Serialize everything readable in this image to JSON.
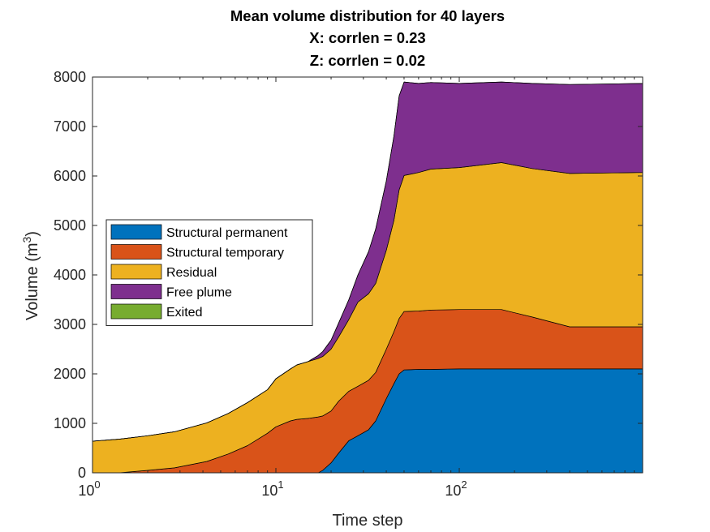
{
  "chart_data": {
    "type": "area",
    "title_lines": [
      "Mean volume distribution for 40 layers",
      "X: corrlen = 0.23",
      "Z: corrlen = 0.02"
    ],
    "xlabel": "Time step",
    "ylabel": "Volume (m",
    "ylabel_superscript": "3",
    "ylabel_close": ")",
    "x_scale": "log",
    "xlim": [
      1,
      1000
    ],
    "ylim": [
      0,
      8000
    ],
    "xticks": [
      {
        "base": "10",
        "exp": "0",
        "value": 1
      },
      {
        "base": "10",
        "exp": "1",
        "value": 10
      },
      {
        "base": "10",
        "exp": "2",
        "value": 100
      }
    ],
    "yticks": [
      "0",
      "1000",
      "2000",
      "3000",
      "4000",
      "5000",
      "6000",
      "7000",
      "8000"
    ],
    "stacked": true,
    "x": [
      1,
      1.4,
      2,
      2.8,
      4.2,
      5.5,
      7,
      9,
      10,
      12,
      13,
      15,
      17,
      18,
      20,
      22,
      25,
      28,
      32,
      35,
      40,
      44,
      47,
      50,
      60,
      70,
      100,
      170,
      250,
      400,
      1000
    ],
    "series": [
      {
        "name": "Structural permanent",
        "color": "#0072BD",
        "values": [
          0,
          0,
          0,
          0,
          0,
          0,
          0,
          0,
          0,
          0,
          0,
          0,
          0,
          50,
          200,
          400,
          650,
          750,
          870,
          1050,
          1500,
          1800,
          2000,
          2080,
          2090,
          2090,
          2100,
          2100,
          2100,
          2100,
          2100
        ]
      },
      {
        "name": "Structural temporary",
        "color": "#D95319",
        "values": [
          0,
          0,
          50,
          100,
          230,
          380,
          550,
          800,
          930,
          1050,
          1080,
          1100,
          1130,
          1100,
          1050,
          1050,
          1000,
          1000,
          1000,
          980,
          1000,
          1050,
          1120,
          1180,
          1180,
          1200,
          1200,
          1200,
          1050,
          850,
          850
        ]
      },
      {
        "name": "Residual",
        "color": "#EDB120",
        "values": [
          640,
          680,
          700,
          730,
          780,
          820,
          870,
          880,
          970,
          1050,
          1100,
          1150,
          1180,
          1200,
          1250,
          1300,
          1450,
          1700,
          1750,
          1800,
          2000,
          2250,
          2600,
          2750,
          2800,
          2850,
          2870,
          2970,
          3000,
          3100,
          3120
        ]
      },
      {
        "name": "Free plume",
        "color": "#7E2F8E",
        "values": [
          0,
          0,
          0,
          0,
          0,
          0,
          0,
          0,
          0,
          0,
          0,
          0,
          60,
          100,
          180,
          280,
          400,
          550,
          850,
          1100,
          1400,
          1700,
          1900,
          1890,
          1800,
          1750,
          1700,
          1630,
          1720,
          1800,
          1800
        ]
      },
      {
        "name": "Exited",
        "color": "#77AC30",
        "values": [
          0,
          0,
          0,
          0,
          0,
          0,
          0,
          0,
          0,
          0,
          0,
          0,
          0,
          0,
          0,
          0,
          0,
          0,
          0,
          0,
          0,
          0,
          0,
          0,
          0,
          0,
          0,
          0,
          0,
          0,
          0
        ]
      }
    ],
    "legend_position": "middle-left",
    "grid": false
  }
}
